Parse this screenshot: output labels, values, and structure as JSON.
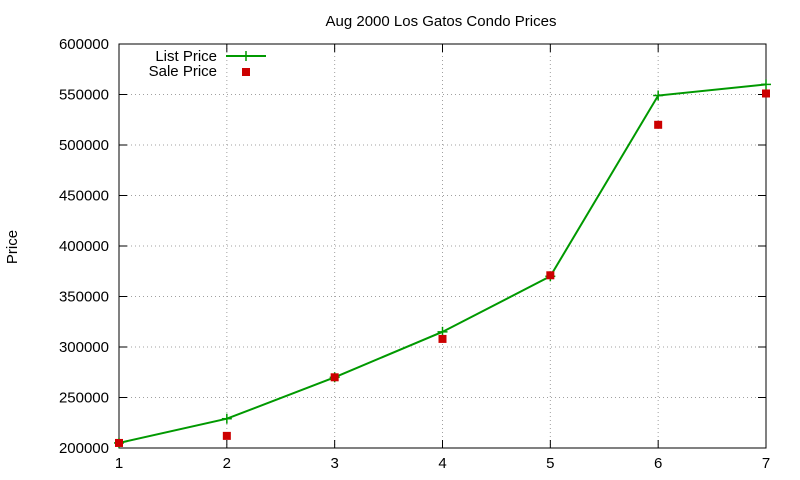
{
  "chart_data": {
    "type": "line",
    "title": "Aug 2000 Los Gatos Condo Prices",
    "xlabel": "",
    "ylabel": "Price",
    "xlim": [
      1,
      7
    ],
    "ylim": [
      200000,
      600000
    ],
    "x_ticks": [
      1,
      2,
      3,
      4,
      5,
      6,
      7
    ],
    "y_ticks": [
      200000,
      250000,
      300000,
      350000,
      400000,
      450000,
      500000,
      550000,
      600000
    ],
    "grid": true,
    "legend_position": "top-left",
    "series": [
      {
        "name": "List Price",
        "style": "line-with-plus-markers",
        "color": "#009900",
        "x": [
          1,
          2,
          3,
          4,
          5,
          6,
          7
        ],
        "y": [
          205000,
          229000,
          270000,
          315000,
          370000,
          549000,
          560000
        ]
      },
      {
        "name": "Sale Price",
        "style": "square-markers",
        "color": "#cc0000",
        "x": [
          1,
          2,
          3,
          4,
          5,
          6,
          7
        ],
        "y": [
          205000,
          212000,
          270000,
          308000,
          371000,
          520000,
          551000
        ]
      }
    ]
  }
}
